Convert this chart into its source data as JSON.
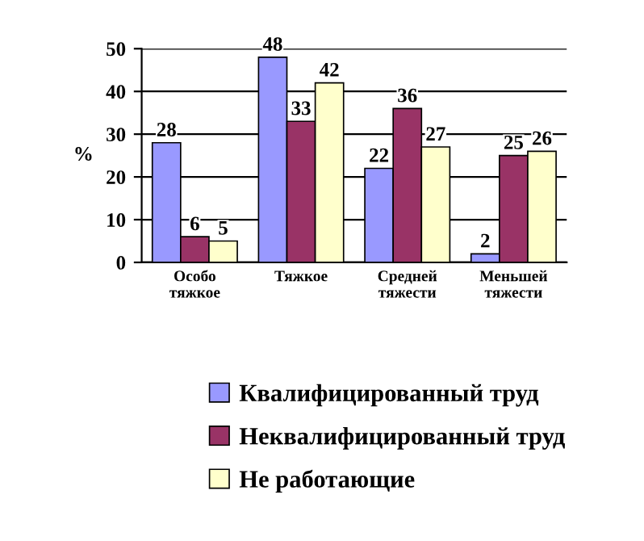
{
  "chart_data": {
    "type": "bar",
    "ylabel": "%",
    "categories": [
      "Особо\nтяжкое",
      "Тяжкое",
      "Средней\nтяжести",
      "Меньшей\nтяжести"
    ],
    "series": [
      {
        "name": "Квалифицированный труд",
        "color": "#9999ff",
        "values": [
          28,
          48,
          22,
          2
        ]
      },
      {
        "name": "Неквалифицированный труд",
        "color": "#993366",
        "values": [
          6,
          33,
          36,
          25
        ]
      },
      {
        "name": "Не работающие",
        "color": "#ffffcc",
        "values": [
          5,
          42,
          27,
          26
        ]
      }
    ],
    "ylim": [
      0,
      50
    ],
    "yticks": [
      0,
      10,
      20,
      30,
      40,
      50
    ],
    "grid": "y",
    "legend": "bottom",
    "data_labels": true
  }
}
